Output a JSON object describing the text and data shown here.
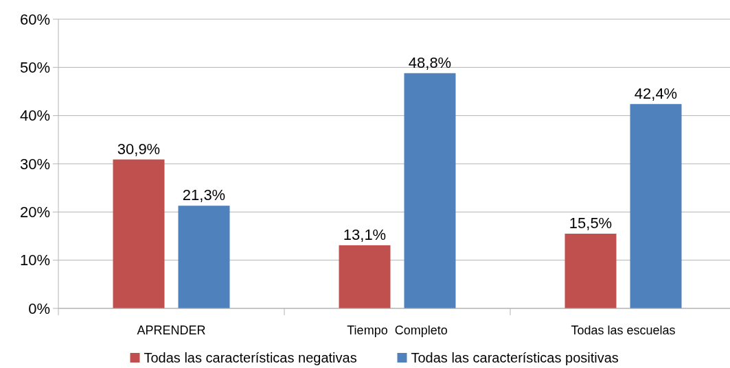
{
  "chart_data": {
    "type": "bar",
    "categories": [
      "APRENDER",
      "Tiempo  Completo",
      "Todas las escuelas"
    ],
    "series": [
      {
        "name": "Todas las características negativas",
        "color": "#c0504d",
        "values": [
          30.9,
          13.1,
          15.5
        ],
        "value_labels": [
          "30,9%",
          "13,1%",
          "15,5%"
        ]
      },
      {
        "name": "Todas las características positivas",
        "color": "#4f81bd",
        "values": [
          21.3,
          48.8,
          42.4
        ],
        "value_labels": [
          "21,3%",
          "48,8%",
          "42,4%"
        ]
      }
    ],
    "ylim": [
      0,
      60
    ],
    "yticks": [
      {
        "value": 0,
        "label": "0%"
      },
      {
        "value": 10,
        "label": "10%"
      },
      {
        "value": 20,
        "label": "20%"
      },
      {
        "value": 30,
        "label": "30%"
      },
      {
        "value": 40,
        "label": "40%"
      },
      {
        "value": 50,
        "label": "50%"
      },
      {
        "value": 60,
        "label": "60%"
      }
    ],
    "grid": "y",
    "legend": "bottom"
  }
}
